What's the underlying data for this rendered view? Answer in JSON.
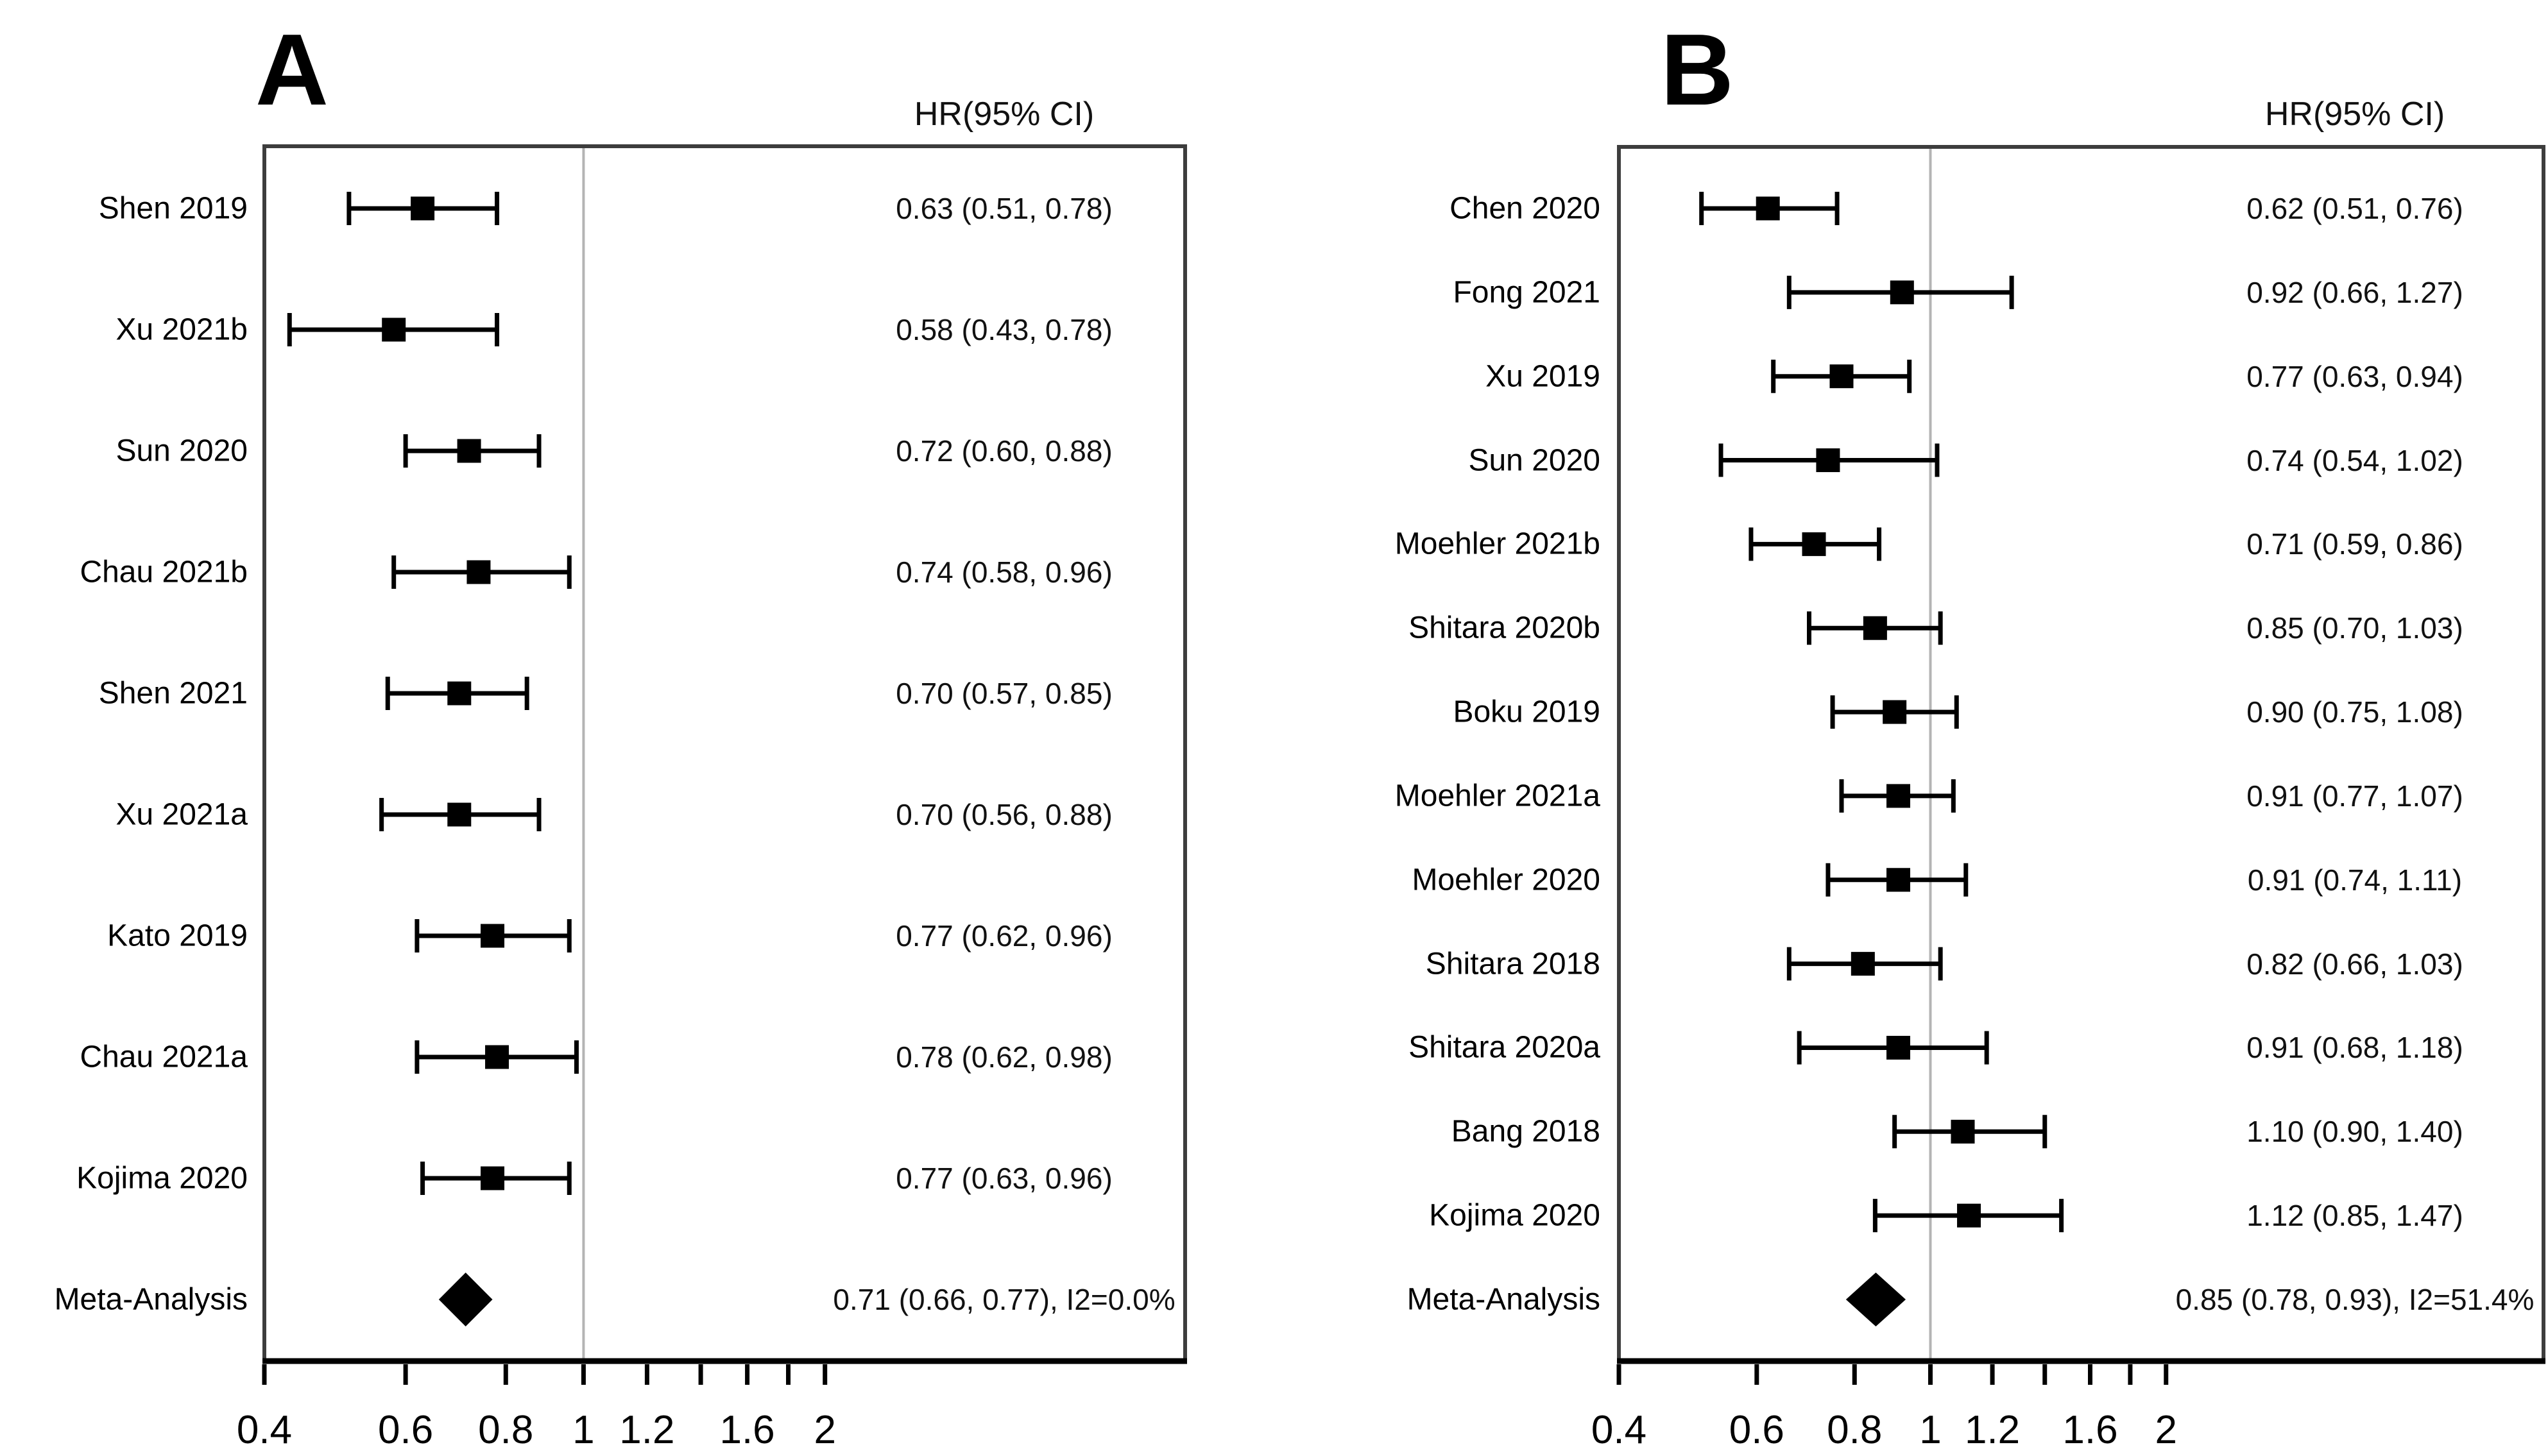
{
  "figure": {
    "background": "#ffffff",
    "panels": [
      {
        "panel_label": "A",
        "header": "HR(95% CI)"
      },
      {
        "panel_label": "B",
        "header": "HR(95% CI)"
      }
    ]
  },
  "chart_data": [
    {
      "type": "forest",
      "panel_label": "A",
      "title": "HR(95% CI)",
      "axis": {
        "scale": "log",
        "x_min": 0.4,
        "reference_line": 1,
        "ticks": [
          {
            "v": 0.4,
            "label": "0.4"
          },
          {
            "v": 0.6,
            "label": "0.6"
          },
          {
            "v": 0.8,
            "label": "0.8"
          },
          {
            "v": 1.0,
            "label": "1"
          },
          {
            "v": 1.2,
            "label": "1.2"
          },
          {
            "v": 1.4,
            "label": ""
          },
          {
            "v": 1.6,
            "label": "1.6"
          },
          {
            "v": 1.8,
            "label": ""
          },
          {
            "v": 2.0,
            "label": "2"
          }
        ]
      },
      "colors": {
        "marks": "#000000",
        "reference_line": "#b4b4b4",
        "frame": "#3d3d3d"
      },
      "rows": [
        {
          "name": "Shen 2019",
          "type": "study",
          "hr": 0.63,
          "ci_low": 0.51,
          "ci_high": 0.78,
          "label": "0.63 (0.51, 0.78)"
        },
        {
          "name": "Xu 2021b",
          "type": "study",
          "hr": 0.58,
          "ci_low": 0.43,
          "ci_high": 0.78,
          "label": "0.58 (0.43, 0.78)"
        },
        {
          "name": "Sun 2020",
          "type": "study",
          "hr": 0.72,
          "ci_low": 0.6,
          "ci_high": 0.88,
          "label": "0.72 (0.60, 0.88)"
        },
        {
          "name": "Chau 2021b",
          "type": "study",
          "hr": 0.74,
          "ci_low": 0.58,
          "ci_high": 0.96,
          "label": "0.74 (0.58, 0.96)"
        },
        {
          "name": "Shen 2021",
          "type": "study",
          "hr": 0.7,
          "ci_low": 0.57,
          "ci_high": 0.85,
          "label": "0.70 (0.57, 0.85)"
        },
        {
          "name": "Xu 2021a",
          "type": "study",
          "hr": 0.7,
          "ci_low": 0.56,
          "ci_high": 0.88,
          "label": "0.70 (0.56, 0.88)"
        },
        {
          "name": "Kato 2019",
          "type": "study",
          "hr": 0.77,
          "ci_low": 0.62,
          "ci_high": 0.96,
          "label": "0.77 (0.62, 0.96)"
        },
        {
          "name": "Chau 2021a",
          "type": "study",
          "hr": 0.78,
          "ci_low": 0.62,
          "ci_high": 0.98,
          "label": "0.78 (0.62, 0.98)"
        },
        {
          "name": "Kojima 2020",
          "type": "study",
          "hr": 0.77,
          "ci_low": 0.63,
          "ci_high": 0.96,
          "label": "0.77 (0.63, 0.96)"
        },
        {
          "name": "Meta-Analysis",
          "type": "summary",
          "hr": 0.71,
          "ci_low": 0.66,
          "ci_high": 0.77,
          "label": "0.71 (0.66, 0.77), I2=0.0%"
        }
      ]
    },
    {
      "type": "forest",
      "panel_label": "B",
      "title": "HR(95% CI)",
      "axis": {
        "scale": "log",
        "x_min": 0.4,
        "reference_line": 1,
        "ticks": [
          {
            "v": 0.4,
            "label": "0.4"
          },
          {
            "v": 0.6,
            "label": "0.6"
          },
          {
            "v": 0.8,
            "label": "0.8"
          },
          {
            "v": 1.0,
            "label": "1"
          },
          {
            "v": 1.2,
            "label": "1.2"
          },
          {
            "v": 1.4,
            "label": ""
          },
          {
            "v": 1.6,
            "label": "1.6"
          },
          {
            "v": 1.8,
            "label": ""
          },
          {
            "v": 2.0,
            "label": "2"
          }
        ]
      },
      "colors": {
        "marks": "#000000",
        "reference_line": "#b4b4b4",
        "frame": "#3d3d3d"
      },
      "rows": [
        {
          "name": "Chen 2020",
          "type": "study",
          "hr": 0.62,
          "ci_low": 0.51,
          "ci_high": 0.76,
          "label": "0.62 (0.51, 0.76)"
        },
        {
          "name": "Fong 2021",
          "type": "study",
          "hr": 0.92,
          "ci_low": 0.66,
          "ci_high": 1.27,
          "label": "0.92 (0.66, 1.27)"
        },
        {
          "name": "Xu 2019",
          "type": "study",
          "hr": 0.77,
          "ci_low": 0.63,
          "ci_high": 0.94,
          "label": "0.77 (0.63, 0.94)"
        },
        {
          "name": "Sun 2020",
          "type": "study",
          "hr": 0.74,
          "ci_low": 0.54,
          "ci_high": 1.02,
          "label": "0.74 (0.54, 1.02)"
        },
        {
          "name": "Moehler 2021b",
          "type": "study",
          "hr": 0.71,
          "ci_low": 0.59,
          "ci_high": 0.86,
          "label": "0.71 (0.59, 0.86)"
        },
        {
          "name": "Shitara 2020b",
          "type": "study",
          "hr": 0.85,
          "ci_low": 0.7,
          "ci_high": 1.03,
          "label": "0.85 (0.70, 1.03)"
        },
        {
          "name": "Boku 2019",
          "type": "study",
          "hr": 0.9,
          "ci_low": 0.75,
          "ci_high": 1.08,
          "label": "0.90 (0.75, 1.08)"
        },
        {
          "name": "Moehler 2021a",
          "type": "study",
          "hr": 0.91,
          "ci_low": 0.77,
          "ci_high": 1.07,
          "label": "0.91 (0.77, 1.07)"
        },
        {
          "name": "Moehler 2020",
          "type": "study",
          "hr": 0.91,
          "ci_low": 0.74,
          "ci_high": 1.11,
          "label": "0.91 (0.74, 1.11)"
        },
        {
          "name": "Shitara 2018",
          "type": "study",
          "hr": 0.82,
          "ci_low": 0.66,
          "ci_high": 1.03,
          "label": "0.82 (0.66, 1.03)"
        },
        {
          "name": "Shitara 2020a",
          "type": "study",
          "hr": 0.91,
          "ci_low": 0.68,
          "ci_high": 1.18,
          "label": "0.91 (0.68, 1.18)"
        },
        {
          "name": "Bang 2018",
          "type": "study",
          "hr": 1.1,
          "ci_low": 0.9,
          "ci_high": 1.4,
          "label": "1.10 (0.90, 1.40)"
        },
        {
          "name": "Kojima 2020",
          "type": "study",
          "hr": 1.12,
          "ci_low": 0.85,
          "ci_high": 1.47,
          "label": "1.12 (0.85, 1.47)"
        },
        {
          "name": "Meta-Analysis",
          "type": "summary",
          "hr": 0.85,
          "ci_low": 0.78,
          "ci_high": 0.93,
          "label": "0.85 (0.78, 0.93), I2=51.4%"
        }
      ]
    }
  ]
}
